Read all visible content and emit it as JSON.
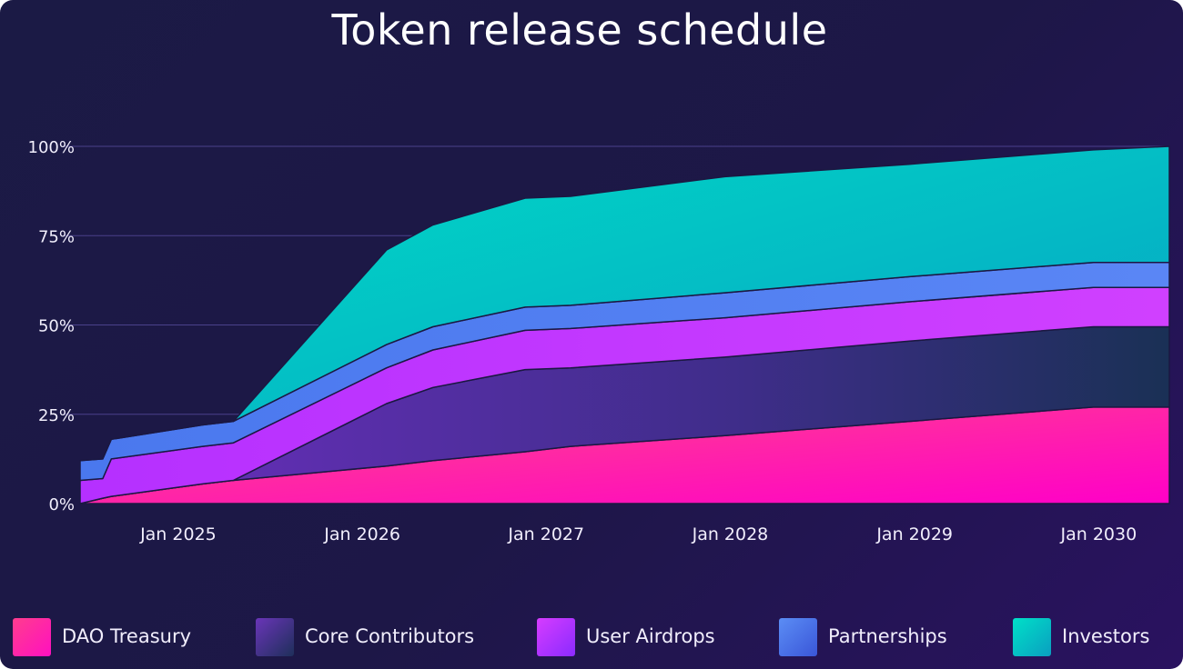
{
  "chart_data": {
    "type": "area",
    "stacked": true,
    "title": "Token release schedule",
    "xlabel": "",
    "ylabel": "",
    "y_tick_labels": [
      "0%",
      "25%",
      "50%",
      "75%",
      "100%"
    ],
    "y_ticks": [
      0,
      25,
      50,
      75,
      100
    ],
    "ylim": [
      0,
      100
    ],
    "x_tick_labels": [
      "Jan 2025",
      "Jan 2026",
      "Jan 2027",
      "Jan 2028",
      "Jan 2029",
      "Jan 2030"
    ],
    "x_ticks": [
      "2025-01-01",
      "2026-01-01",
      "2027-01-01",
      "2028-01-01",
      "2029-01-01",
      "2030-01-01"
    ],
    "xlim": [
      "2024-07-01",
      "2030-06-01"
    ],
    "grid": true,
    "legend_position": "bottom",
    "x": [
      "2024-07-01",
      "2024-08-15",
      "2024-09-01",
      "2025-03-01",
      "2025-05-01",
      "2026-03-01",
      "2026-06-01",
      "2026-12-01",
      "2027-03-01",
      "2028-01-01",
      "2029-01-01",
      "2030-01-01",
      "2030-06-01"
    ],
    "series": [
      {
        "name": "DAO Treasury",
        "color": "#ff1493",
        "values": [
          0,
          1.5,
          2,
          5.5,
          6.5,
          10.5,
          12,
          14.5,
          16,
          19,
          23,
          27,
          27
        ]
      },
      {
        "name": "Core Contributors",
        "color": "#5b2fa0",
        "values": [
          0,
          0,
          0,
          0,
          0,
          17.5,
          20.5,
          23,
          22,
          22,
          22.5,
          22.5,
          22.5
        ]
      },
      {
        "name": "User Airdrops",
        "color": "#c43bff",
        "values": [
          6.5,
          5.5,
          10.5,
          10.5,
          10.5,
          10,
          10.5,
          11,
          11,
          11,
          11,
          11,
          11
        ]
      },
      {
        "name": "Partnerships",
        "color": "#4f7ff0",
        "values": [
          5.5,
          5.5,
          5.5,
          6,
          6,
          6.5,
          6.5,
          6.5,
          6.5,
          7,
          7,
          7,
          7
        ]
      },
      {
        "name": "Investors",
        "color": "#00d4c8",
        "values": [
          0,
          0,
          0,
          0,
          0,
          26.5,
          28.5,
          30.5,
          30.5,
          32.5,
          31.5,
          31.5,
          32.5
        ]
      }
    ]
  },
  "legend": [
    {
      "label": "DAO Treasury",
      "colors": [
        "#ff3d8e",
        "#ff10c0"
      ]
    },
    {
      "label": "Core Contributors",
      "colors": [
        "#6a35b8",
        "#1e2f5a"
      ]
    },
    {
      "label": "User Airdrops",
      "colors": [
        "#d63cff",
        "#8a2bff"
      ]
    },
    {
      "label": "Partnerships",
      "colors": [
        "#5b8df5",
        "#3a56d8"
      ]
    },
    {
      "label": "Investors",
      "colors": [
        "#00e0c8",
        "#0a9fc0"
      ]
    }
  ]
}
